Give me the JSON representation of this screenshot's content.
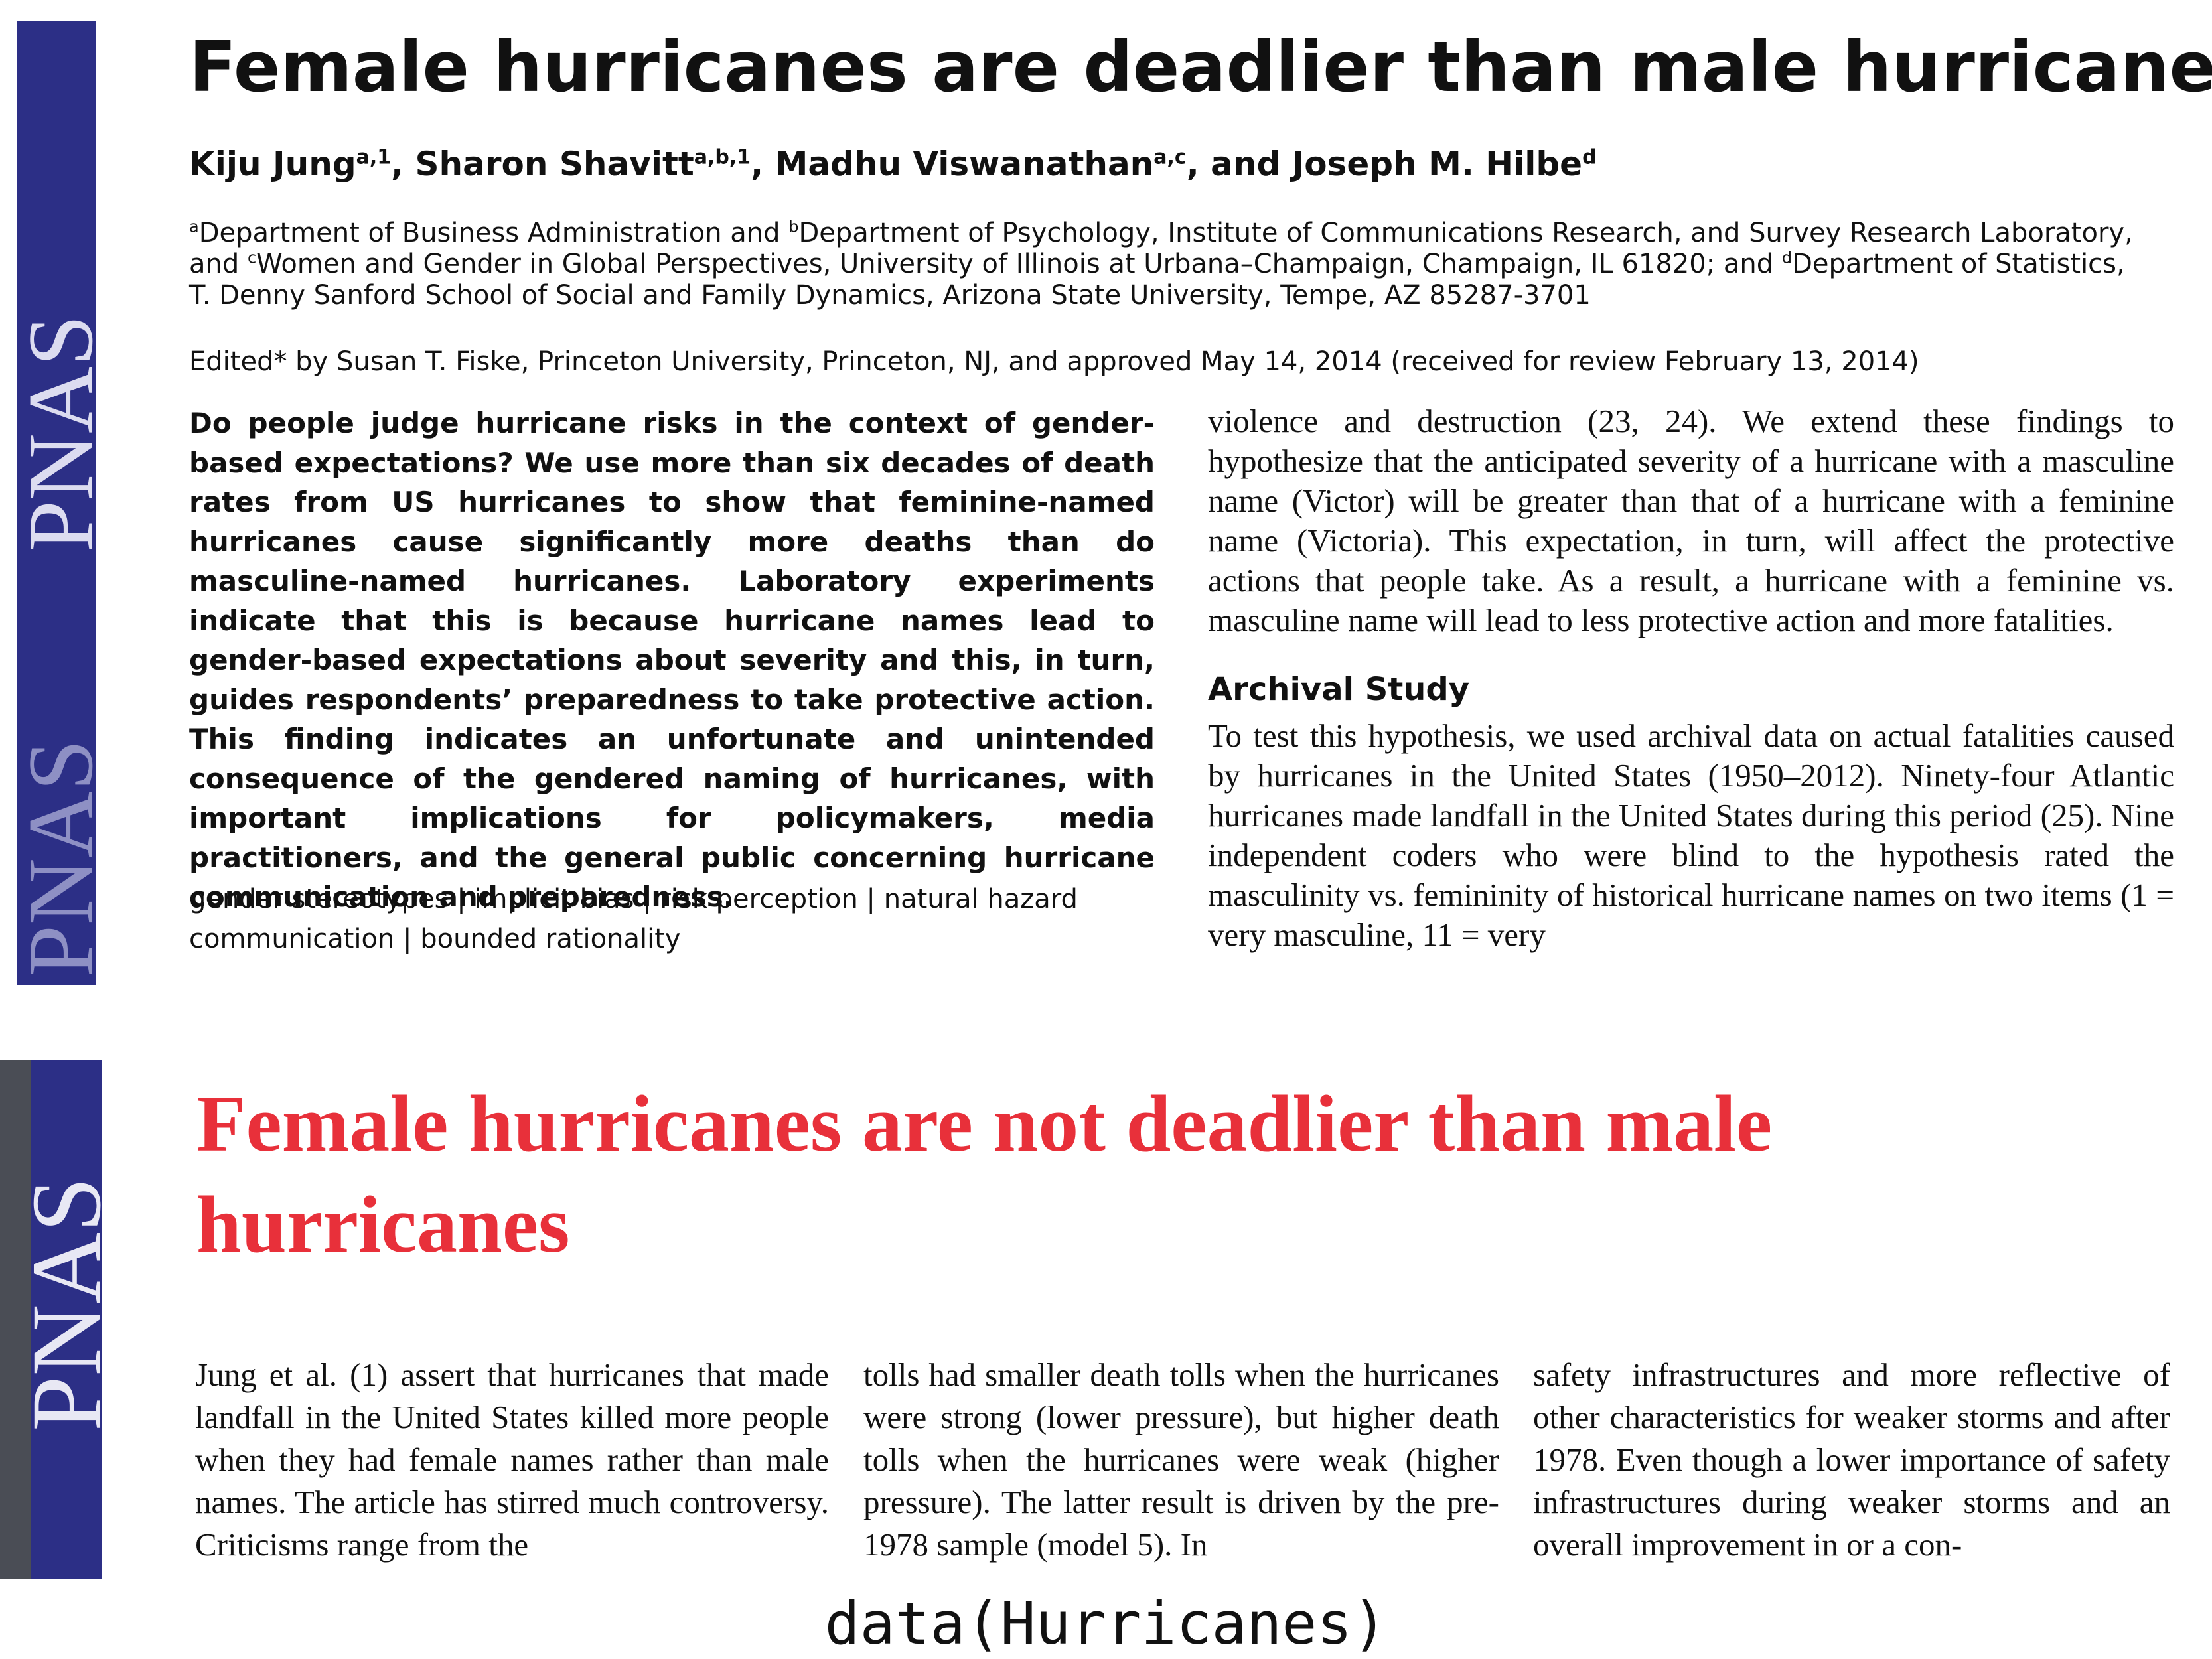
{
  "top_paper": {
    "sidebar_logo": "PNAS",
    "title": "Female hurricanes are deadlier than male hurricanes",
    "authors": [
      {
        "text": "Kiju Jung",
        "sup": "a,1"
      },
      {
        "text": ", Sharon Shavitt",
        "sup": "a,b,1"
      },
      {
        "text": ", Madhu Viswanathan",
        "sup": "a,c"
      },
      {
        "text": ", and Joseph M. Hilbe",
        "sup": "d"
      }
    ],
    "affiliations": [
      {
        "sup": "a",
        "text": "Department of Business Administration and "
      },
      {
        "sup": "b",
        "text": "Department of Psychology, Institute of Communications Research, and Survey Research Laboratory, and "
      },
      {
        "sup": "c",
        "text": "Women and Gender in Global Perspectives, University of Illinois at Urbana–Champaign, Champaign, IL 61820; and "
      },
      {
        "sup": "d",
        "text": "Department of Statistics, T. Denny Sanford School of Social and Family Dynamics, Arizona State University, Tempe, AZ 85287-3701"
      }
    ],
    "edited": "Edited* by Susan T. Fiske, Princeton University, Princeton, NJ, and approved May 14, 2014 (received for review February 13, 2014)",
    "abstract": "Do people judge hurricane risks in the context of gender-based expectations? We use more than six decades of death rates from US hurricanes to show that feminine-named hurricanes cause significantly more deaths than do masculine-named hurricanes. Laboratory experiments indicate that this is because hurricane names lead to gender-based expectations about severity and this, in turn, guides respondents’ preparedness to take protective action. This finding indicates an unfortunate and unintended consequence of the gendered naming of hurricanes, with important implications for policymakers, media practitioners, and the general public concerning hurricane communication and preparedness.",
    "keywords": "gender stereotypes | implicit bias | risk perception | natural hazard communication | bounded rationality",
    "intro_text": "violence and destruction (23, 24). We extend these findings to hypothesize that the anticipated severity of a hurricane with a masculine name (Victor) will be greater than that of a hurricane with a feminine name (Victoria). This expectation, in turn, will affect the protective actions that people take. As a result, a hurricane with a feminine vs. masculine name will lead to less protective action and more fatalities.",
    "section_heading": "Archival Study",
    "section_text": "To test this hypothesis, we used archival data on actual fatalities caused by hurricanes in the United States (1950–2012). Ninety-four Atlantic hurricanes made landfall in the United States during this period (25). Nine independent coders who were blind to the hypothesis rated the masculinity vs. femininity of historical hurricane names on two items (1 = very masculine, 11 = very"
  },
  "bottom_paper": {
    "sidebar_logo": "PNAS",
    "title": "Female hurricanes are not deadlier than male hurricanes",
    "columns": [
      "Jung et al. (1) assert that hurricanes that made landfall in the United States killed more people when they had female names rather than male names. The article has stirred much controversy. Criticisms range from the",
      "tolls had smaller death tolls when the hurricanes were strong (lower pressure), but higher death tolls when the hurricanes were weak (higher pressure). The latter result is driven by the pre-1978 sample (model 5). In",
      "safety infrastructures and more reflective of other characteristics for weaker storms and after 1978. Even though a lower importance of safety infrastructures during weaker storms and an overall improvement in or a con-"
    ]
  },
  "caption": "data(Hurricanes)"
}
